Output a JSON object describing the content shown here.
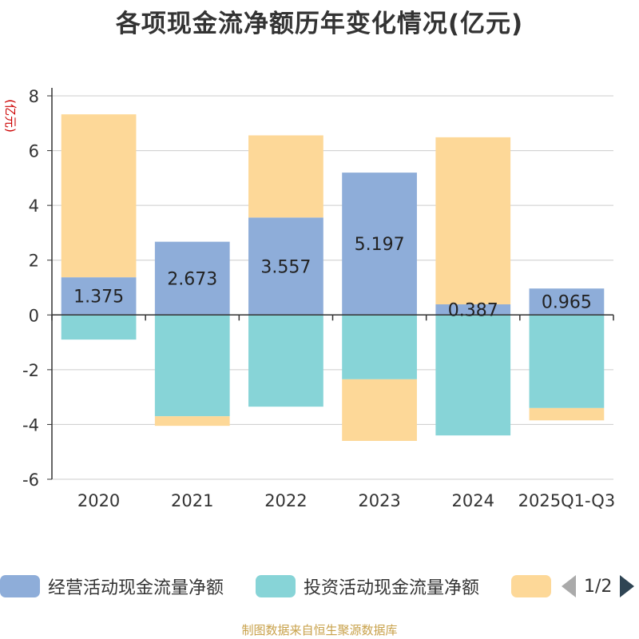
{
  "chart_data": {
    "type": "bar",
    "stacked": true,
    "title": "各项现金流净额历年变化情况(亿元)",
    "ylabel": "(亿元)",
    "xlabel": "",
    "ylim": [
      -6,
      8
    ],
    "yticks": [
      -6,
      -4,
      -2,
      0,
      2,
      4,
      6,
      8
    ],
    "grid": true,
    "categories": [
      "2020",
      "2021",
      "2022",
      "2023",
      "2024",
      "2025Q1-Q3"
    ],
    "series": [
      {
        "name": "经营活动现金流量净额",
        "color": "#8eadd9",
        "values": [
          1.375,
          2.673,
          3.557,
          5.197,
          0.387,
          0.965
        ],
        "labels": [
          "1.375",
          "2.673",
          "3.557",
          "5.197",
          "0.387",
          "0.965"
        ]
      },
      {
        "name": "投资活动现金流量净额",
        "color": "#87d4d7",
        "values": [
          -0.9,
          -3.7,
          -3.35,
          -2.35,
          -4.4,
          -3.4
        ]
      },
      {
        "name": "",
        "color": "#fdd898",
        "values": [
          5.95,
          -0.35,
          3.0,
          -2.25,
          6.1,
          -0.45
        ]
      }
    ]
  },
  "legend": {
    "items": [
      {
        "label": "经营活动现金流量净额",
        "color": "#8eadd9"
      },
      {
        "label": "投资活动现金流量净额",
        "color": "#87d4d7"
      },
      {
        "label": "",
        "color": "#fdd898"
      }
    ],
    "page_text": "1/2"
  },
  "source": "制图数据来自恒生聚源数据库"
}
